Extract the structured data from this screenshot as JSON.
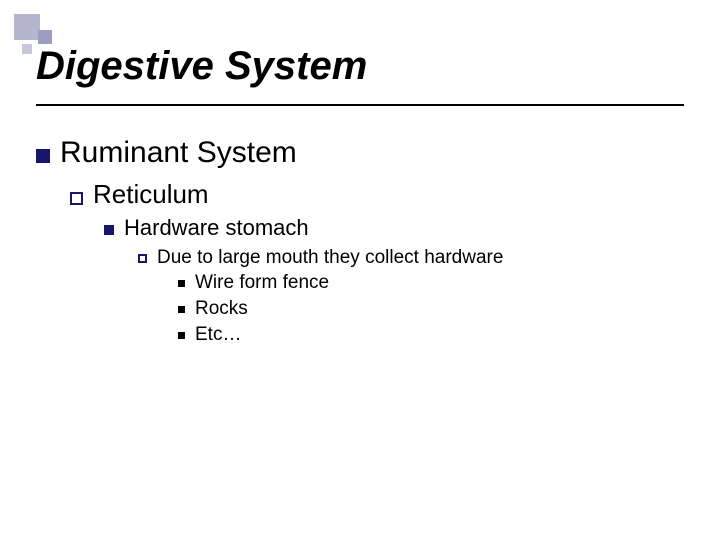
{
  "colors": {
    "bullet_navy": "#17166a",
    "text": "#000000",
    "decoration_a": "#b5b5cf",
    "decoration_b": "#9d9dc2",
    "decoration_c": "#c7c7da",
    "background": "#ffffff"
  },
  "typography": {
    "title_fontsize": 40,
    "title_italic": true,
    "lvl1_fontsize": 30,
    "lvl2_fontsize": 26,
    "lvl3_fontsize": 22,
    "lvl4_fontsize": 19,
    "lvl5_fontsize": 19,
    "font_family": "Arial"
  },
  "title": "Digestive System",
  "content": {
    "lvl1": "Ruminant System",
    "lvl2": "Reticulum",
    "lvl3": "Hardware stomach",
    "lvl4": "Due to large mouth they collect hardware",
    "lvl5": {
      "item1": "Wire form fence",
      "item2": "Rocks",
      "item3": "Etc…"
    }
  }
}
